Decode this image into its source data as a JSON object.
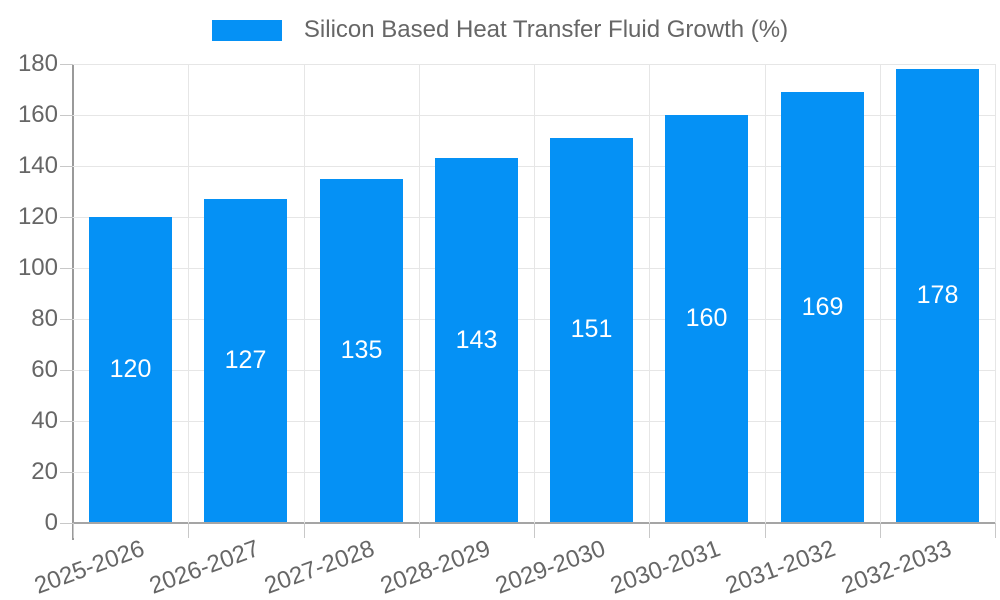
{
  "chart_data": {
    "type": "bar",
    "title": "Silicon Based Heat Transfer Fluid Growth (%)",
    "categories": [
      "2025-2026",
      "2026-2027",
      "2027-2028",
      "2028-2029",
      "2029-2030",
      "2030-2031",
      "2031-2032",
      "2032-2033"
    ],
    "values": [
      120,
      127,
      135,
      143,
      151,
      160,
      169,
      178
    ],
    "bar_labels": [
      "120",
      "127",
      "135",
      "143",
      "151",
      "160",
      "169",
      "178"
    ],
    "xlabel": "",
    "ylabel": "",
    "ylim": [
      0,
      180
    ],
    "yticks": [
      0,
      20,
      40,
      60,
      80,
      100,
      120,
      140,
      160,
      180
    ],
    "grid": true,
    "legend_position": "top",
    "colors": {
      "bar": "#0591f5",
      "bar_label": "#ffffff",
      "axis_text": "#666666",
      "legend_text": "#666666",
      "grid_line": "#e6e6e6",
      "axis_line": "#9a9a9a"
    }
  }
}
